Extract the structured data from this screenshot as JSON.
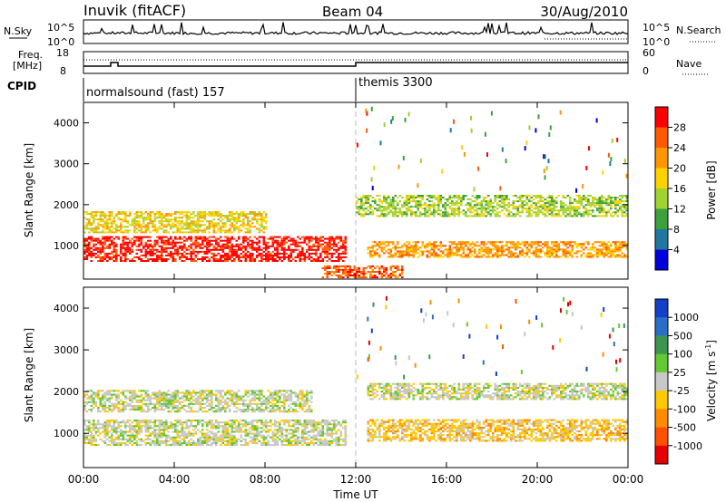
{
  "header": {
    "station": "Inuvik (fitACF)",
    "beam": "Beam 04",
    "date": "30/Aug/2010"
  },
  "noise_panel": {
    "left_label": "N.Sky",
    "right_label": "N.Search",
    "left_ticks": [
      "10^5",
      "10^0"
    ],
    "right_ticks": [
      "10^5",
      "10^0"
    ]
  },
  "freq_panel": {
    "left_label_1": "Freq.",
    "left_label_2": "[MHz]",
    "right_label": "Nave",
    "left_ticks": [
      "18",
      "8"
    ],
    "right_ticks": [
      "60",
      "0"
    ]
  },
  "cpid_panel": {
    "label": "CPID",
    "modes": [
      {
        "name": "normalsound (fast) 157",
        "start_hour": 0,
        "end_hour": 12
      },
      {
        "name": "themis 3300",
        "start_hour": 12,
        "end_hour": 24
      }
    ]
  },
  "power_panel": {
    "ylabel": "Slant Range [km]",
    "cbar_label": "Power [dB]",
    "cbar_ticks": [
      "28",
      "24",
      "20",
      "16",
      "12",
      "8",
      "4"
    ],
    "cbar_colors": [
      "#ff0000",
      "#ff5a00",
      "#ff9600",
      "#ffd200",
      "#a0d230",
      "#3ca03c",
      "#1e78a0",
      "#0000dc"
    ]
  },
  "velocity_panel": {
    "ylabel": "Slant Range [km]",
    "cbar_label": "Velocity [m s",
    "cbar_label_sup": "-1",
    "cbar_label_end": "]",
    "cbar_ticks": [
      "1000",
      "500",
      "100",
      "25",
      "-25",
      "-100",
      "-500",
      "-1000"
    ],
    "cbar_colors": [
      "#1440c8",
      "#2a6ec8",
      "#3c9650",
      "#64c832",
      "#c8c8c8",
      "#ffc800",
      "#ff8c00",
      "#ff5000",
      "#e60000"
    ]
  },
  "x_axis": {
    "label": "Time UT",
    "ticks": [
      "00:00",
      "04:00",
      "08:00",
      "12:00",
      "16:00",
      "20:00",
      "00:00"
    ]
  },
  "y_axis": {
    "ticks": [
      "1000",
      "2000",
      "3000",
      "4000"
    ]
  },
  "chart_data": [
    {
      "type": "heatmap",
      "title": "Inuvik (fitACF) Beam 04 30/Aug/2010",
      "quantity": "Power",
      "unit": "dB",
      "xlabel": "Time UT",
      "ylabel": "Slant Range [km]",
      "xlim_hours": [
        0,
        24
      ],
      "ylim_km": [
        180,
        4500
      ],
      "clim": [
        0,
        30
      ],
      "echo_bands": [
        {
          "start_hour": 0.0,
          "end_hour": 11.5,
          "range_km": [
            600,
            1200
          ],
          "power_db": 28
        },
        {
          "start_hour": 0.0,
          "end_hour": 8.0,
          "range_km": [
            1300,
            1800
          ],
          "power_db": 16
        },
        {
          "start_hour": 12.0,
          "end_hour": 24.0,
          "range_km": [
            1700,
            2200
          ],
          "power_db": 12
        },
        {
          "start_hour": 12.5,
          "end_hour": 24.0,
          "range_km": [
            700,
            1100
          ],
          "power_db": 22
        },
        {
          "start_hour": 10.5,
          "end_hour": 14.0,
          "range_km": [
            200,
            500
          ],
          "power_db": 26
        }
      ]
    },
    {
      "type": "heatmap",
      "quantity": "Velocity",
      "unit": "m s-1",
      "xlabel": "Time UT",
      "ylabel": "Slant Range [km]",
      "xlim_hours": [
        0,
        24
      ],
      "ylim_km": [
        180,
        4500
      ],
      "clim": [
        -1000,
        1000
      ],
      "echo_bands": [
        {
          "start_hour": 0.0,
          "end_hour": 11.5,
          "range_km": [
            700,
            1300
          ],
          "velocity_ms": -100
        },
        {
          "start_hour": 0.0,
          "end_hour": 10.0,
          "range_km": [
            1500,
            2000
          ],
          "velocity_ms": 0
        },
        {
          "start_hour": 12.5,
          "end_hour": 24.0,
          "range_km": [
            1800,
            2200
          ],
          "velocity_ms": 0
        },
        {
          "start_hour": 12.5,
          "end_hour": 24.0,
          "range_km": [
            800,
            1300
          ],
          "velocity_ms": -200
        }
      ]
    }
  ]
}
